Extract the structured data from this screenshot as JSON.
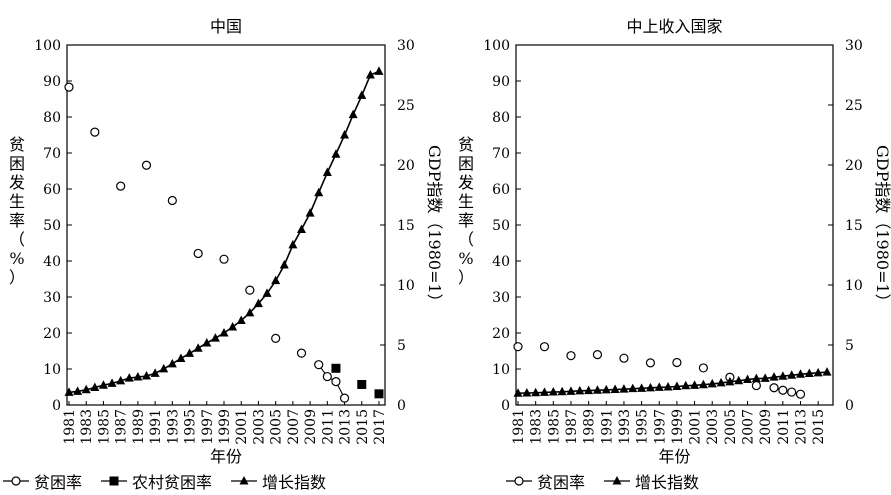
{
  "chart_data": [
    {
      "type": "line",
      "title": "中国",
      "xlabel": "年份",
      "ylabel_left": "贫困发生率（%）",
      "ylabel_right": "GDP指数（1980=1）",
      "ylim_left": [
        0,
        100
      ],
      "ylim_right": [
        0,
        30
      ],
      "xlim": [
        1981,
        2017
      ],
      "x_ticks": [
        1981,
        1983,
        1985,
        1987,
        1989,
        1991,
        1993,
        1995,
        1997,
        1999,
        2001,
        2003,
        2005,
        2007,
        2009,
        2011,
        2013,
        2015,
        2017
      ],
      "y_ticks_left": [
        0,
        10,
        20,
        30,
        40,
        50,
        60,
        70,
        80,
        90,
        100
      ],
      "y_ticks_right": [
        0,
        5,
        10,
        15,
        20,
        25,
        30
      ],
      "series": [
        {
          "name": "贫困率",
          "axis": "left",
          "marker": "open-circle",
          "line": "partial",
          "points": [
            [
              1981,
              88.3
            ],
            [
              1984,
              75.8
            ],
            [
              1987,
              60.8
            ],
            [
              1990,
              66.6
            ],
            [
              1993,
              56.8
            ],
            [
              1996,
              42.1
            ],
            [
              1999,
              40.5
            ],
            [
              2002,
              31.9
            ],
            [
              2005,
              18.5
            ],
            [
              2008,
              14.4
            ],
            [
              2010,
              11.2
            ],
            [
              2011,
              7.9
            ],
            [
              2012,
              6.5
            ],
            [
              2013,
              1.9
            ]
          ],
          "line_from": 2010
        },
        {
          "name": "农村贫困率",
          "axis": "left",
          "marker": "filled-square",
          "line": "none",
          "points": [
            [
              2012,
              10.2
            ],
            [
              2015,
              5.7
            ],
            [
              2017,
              3.1
            ]
          ]
        },
        {
          "name": "增长指数",
          "axis": "right",
          "marker": "filled-triangle",
          "line": "solid",
          "points": [
            [
              1981,
              1.05
            ],
            [
              1982,
              1.14
            ],
            [
              1983,
              1.27
            ],
            [
              1984,
              1.46
            ],
            [
              1985,
              1.65
            ],
            [
              1986,
              1.8
            ],
            [
              1987,
              2.01
            ],
            [
              1988,
              2.24
            ],
            [
              1989,
              2.33
            ],
            [
              1990,
              2.42
            ],
            [
              1991,
              2.64
            ],
            [
              1992,
              3.01
            ],
            [
              1993,
              3.43
            ],
            [
              1994,
              3.88
            ],
            [
              1995,
              4.3
            ],
            [
              1996,
              4.73
            ],
            [
              1997,
              5.17
            ],
            [
              1998,
              5.57
            ],
            [
              1999,
              6.0
            ],
            [
              2000,
              6.5
            ],
            [
              2001,
              7.04
            ],
            [
              2002,
              7.68
            ],
            [
              2003,
              8.45
            ],
            [
              2004,
              9.3
            ],
            [
              2005,
              10.36
            ],
            [
              2006,
              11.67
            ],
            [
              2007,
              13.34
            ],
            [
              2008,
              14.63
            ],
            [
              2009,
              15.99
            ],
            [
              2010,
              17.69
            ],
            [
              2011,
              19.37
            ],
            [
              2012,
              20.9
            ],
            [
              2013,
              22.5
            ],
            [
              2014,
              24.2
            ],
            [
              2015,
              25.8
            ],
            [
              2016,
              27.5
            ],
            [
              2017,
              27.8
            ]
          ]
        }
      ]
    },
    {
      "type": "line",
      "title": "中上收入国家",
      "xlabel": "年份",
      "ylabel_left": "贫困发生率（%）",
      "ylabel_right": "GDP指数（1980=1）",
      "ylim_left": [
        0,
        100
      ],
      "ylim_right": [
        0,
        30
      ],
      "xlim": [
        1981,
        2016
      ],
      "x_ticks": [
        1981,
        1983,
        1985,
        1987,
        1989,
        1991,
        1993,
        1995,
        1997,
        1999,
        2001,
        2003,
        2005,
        2007,
        2009,
        2011,
        2013,
        2015
      ],
      "y_ticks_left": [
        0,
        10,
        20,
        30,
        40,
        50,
        60,
        70,
        80,
        90,
        100
      ],
      "y_ticks_right": [
        0,
        5,
        10,
        15,
        20,
        25,
        30
      ],
      "series": [
        {
          "name": "贫困率",
          "axis": "left",
          "marker": "open-circle",
          "line": "partial",
          "points": [
            [
              1981,
              16.2
            ],
            [
              1984,
              16.2
            ],
            [
              1987,
              13.7
            ],
            [
              1990,
              14.0
            ],
            [
              1993,
              13.0
            ],
            [
              1996,
              11.7
            ],
            [
              1999,
              11.8
            ],
            [
              2002,
              10.3
            ],
            [
              2005,
              7.7
            ],
            [
              2008,
              5.4
            ],
            [
              2010,
              4.8
            ],
            [
              2011,
              4.1
            ],
            [
              2012,
              3.6
            ],
            [
              2013,
              3.0
            ]
          ],
          "line_from": 2010
        },
        {
          "name": "增长指数",
          "axis": "right",
          "marker": "filled-triangle",
          "line": "solid",
          "points": [
            [
              1981,
              0.98
            ],
            [
              1982,
              1.0
            ],
            [
              1983,
              1.02
            ],
            [
              1984,
              1.05
            ],
            [
              1985,
              1.08
            ],
            [
              1986,
              1.1
            ],
            [
              1987,
              1.14
            ],
            [
              1988,
              1.18
            ],
            [
              1989,
              1.2
            ],
            [
              1990,
              1.23
            ],
            [
              1991,
              1.26
            ],
            [
              1992,
              1.29
            ],
            [
              1993,
              1.32
            ],
            [
              1994,
              1.36
            ],
            [
              1995,
              1.39
            ],
            [
              1996,
              1.43
            ],
            [
              1997,
              1.47
            ],
            [
              1998,
              1.5
            ],
            [
              1999,
              1.54
            ],
            [
              2000,
              1.6
            ],
            [
              2001,
              1.64
            ],
            [
              2002,
              1.69
            ],
            [
              2003,
              1.76
            ],
            [
              2004,
              1.84
            ],
            [
              2005,
              1.93
            ],
            [
              2006,
              2.02
            ],
            [
              2007,
              2.12
            ],
            [
              2008,
              2.2
            ],
            [
              2009,
              2.22
            ],
            [
              2010,
              2.32
            ],
            [
              2011,
              2.4
            ],
            [
              2012,
              2.48
            ],
            [
              2013,
              2.56
            ],
            [
              2014,
              2.63
            ],
            [
              2015,
              2.68
            ],
            [
              2016,
              2.74
            ]
          ]
        }
      ]
    }
  ]
}
